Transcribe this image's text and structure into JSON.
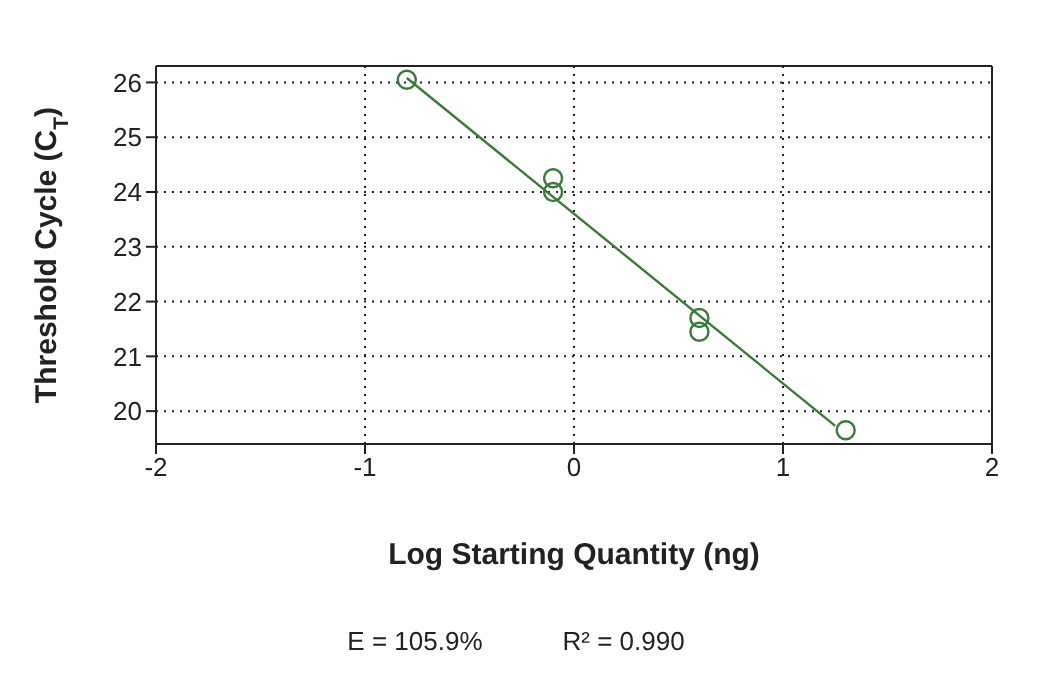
{
  "chart_data": {
    "type": "scatter",
    "xlabel": "Log Starting Quantity (ng)",
    "ylabel": "Threshold Cycle (C$_{T}$)",
    "xlim": [
      -2,
      2
    ],
    "xticks": [
      -2,
      -1,
      0,
      1,
      2
    ],
    "ylim": [
      19.4,
      26.3
    ],
    "yticks": [
      20,
      21,
      22,
      23,
      24,
      25,
      26
    ],
    "grid": true,
    "marker": "circle",
    "series": [
      {
        "color": "#3a7a3a",
        "x": [
          -0.8,
          -0.1,
          -0.1,
          0.6,
          0.6,
          1.3
        ],
        "values": [
          26.05,
          24.25,
          24.0,
          21.7,
          21.45,
          19.65
        ]
      },
      {
        "type": "line",
        "color": "#3a7a3a",
        "x": [
          -0.8,
          1.25
        ],
        "values": [
          26.08,
          19.73
        ],
        "marker": "none"
      }
    ],
    "annotations": [
      "E = 105.9%",
      "R² = 0.990"
    ]
  }
}
